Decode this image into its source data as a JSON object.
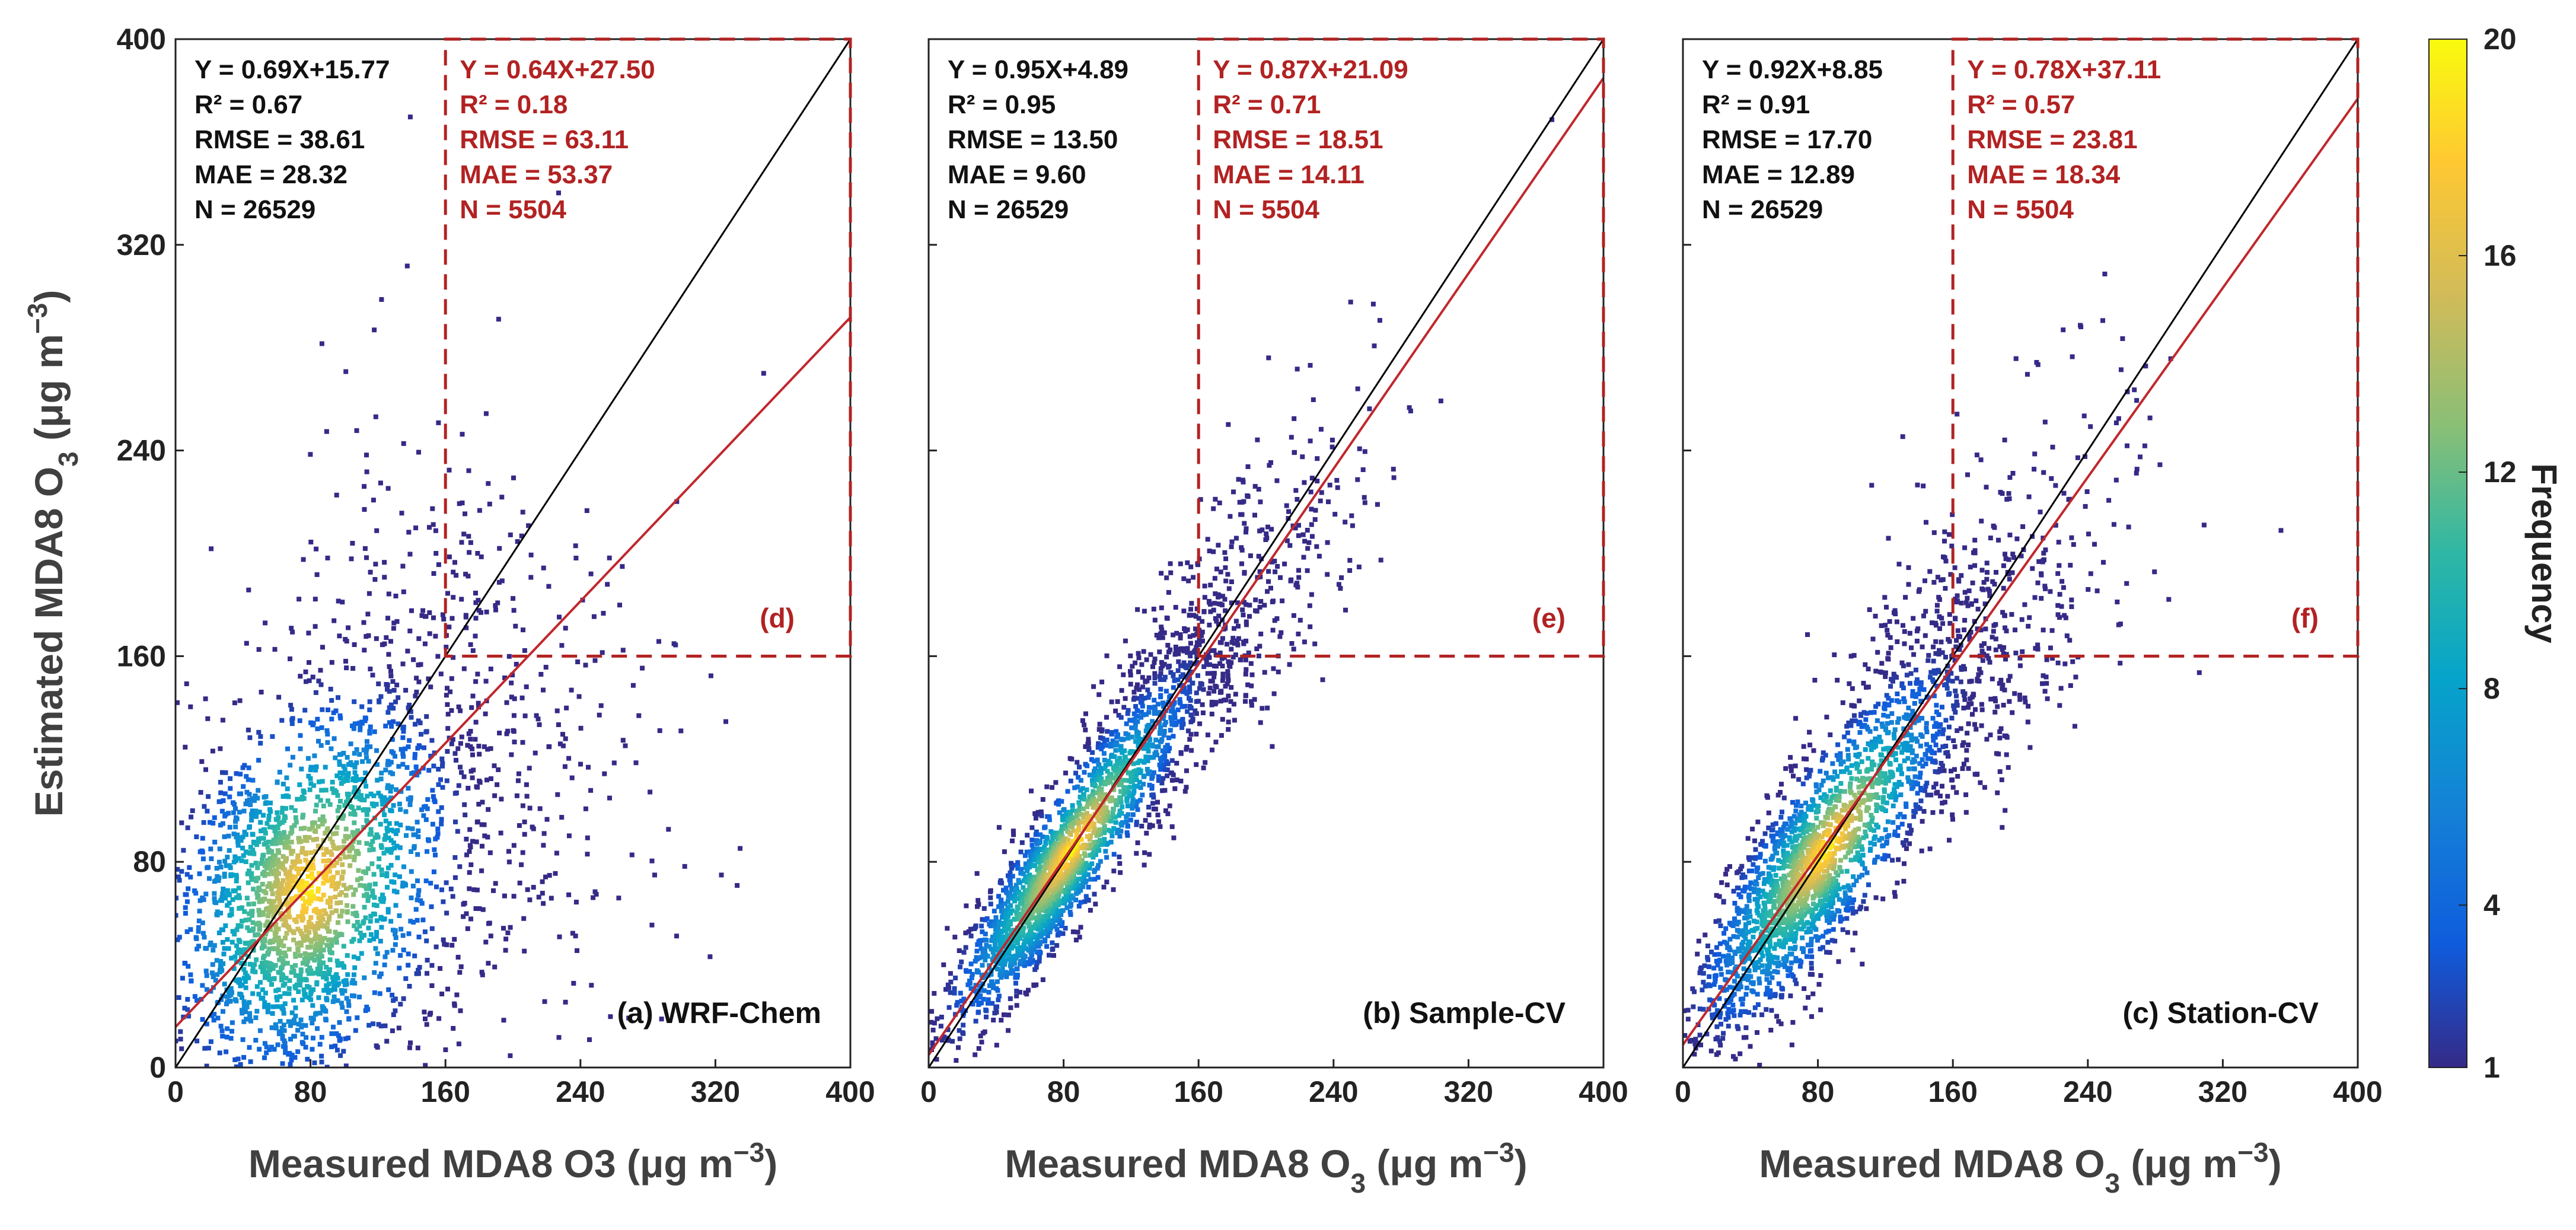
{
  "figure": {
    "ylabel": "Estimated MDA8 O",
    "ylabel_sub": "3",
    "ylabel_unit": " (μg m",
    "ylabel_sup": "−3",
    "ylabel_close": ")",
    "colorbar": {
      "label": "Frequency",
      "ticks": [
        "1",
        "4",
        "8",
        "12",
        "16",
        "20"
      ],
      "tick_values": [
        1,
        4,
        8,
        12,
        16,
        20
      ],
      "range": [
        1,
        20
      ],
      "colors": [
        "#352a87",
        "#0f5cdd",
        "#1481d6",
        "#06a4ca",
        "#2eb7a4",
        "#87bf77",
        "#d1bb59",
        "#fec832",
        "#f9fb0e"
      ]
    }
  },
  "chart_data": [
    {
      "type": "scatter",
      "panel": "(a) WRF-Chem",
      "inset_tag": "(d)",
      "xlabel": {
        "pre": "Measured MDA8 O3",
        "sub": "",
        "unit": " (μg m",
        "sup": "−3",
        "close": ")"
      },
      "xlim": [
        0,
        400
      ],
      "ylim": [
        0,
        400
      ],
      "xticks": [
        "0",
        "80",
        "160",
        "240",
        "320",
        "400"
      ],
      "yticks": [
        "0",
        "80",
        "160",
        "240",
        "320",
        "400"
      ],
      "fit_all": {
        "slope": 0.69,
        "intercept": 15.77
      },
      "fit_high": {
        "slope": 0.64,
        "intercept": 27.5
      },
      "high_region": {
        "x": [
          160,
          400
        ],
        "y": [
          160,
          400
        ]
      },
      "stats_all": [
        "Y = 0.69X+15.77",
        "R² = 0.67",
        "RMSE = 38.61",
        "MAE = 28.32",
        "N = 26529"
      ],
      "stats_high": [
        "Y = 0.64X+27.50",
        "R² = 0.18",
        "RMSE = 63.11",
        "MAE = 53.37",
        "N = 5504"
      ],
      "cloud": {
        "center": [
          80,
          70
        ],
        "spread_major": 70,
        "spread_minor": 32,
        "slope": 0.69,
        "intercept": 15.77
      }
    },
    {
      "type": "scatter",
      "panel": "(b) Sample-CV",
      "inset_tag": "(e)",
      "xlabel": {
        "pre": "Measured MDA8 O",
        "sub": "3",
        "unit": " (μg m",
        "sup": "−3",
        "close": ")"
      },
      "xlim": [
        0,
        400
      ],
      "ylim": [
        0,
        400
      ],
      "xticks": [
        "0",
        "80",
        "160",
        "240",
        "320",
        "400"
      ],
      "yticks": [
        "0",
        "80",
        "160",
        "240",
        "320",
        "400"
      ],
      "fit_all": {
        "slope": 0.95,
        "intercept": 4.89
      },
      "fit_high": {
        "slope": 0.87,
        "intercept": 21.09
      },
      "high_region": {
        "x": [
          160,
          400
        ],
        "y": [
          160,
          400
        ]
      },
      "stats_all": [
        "Y = 0.95X+4.89",
        "R² = 0.95",
        "RMSE = 13.50",
        "MAE = 9.60",
        "N = 26529"
      ],
      "stats_high": [
        "Y = 0.87X+21.09",
        "R² = 0.71",
        "RMSE = 18.51",
        "MAE = 14.11",
        "N = 5504"
      ],
      "cloud": {
        "center": [
          85,
          85
        ],
        "spread_major": 75,
        "spread_minor": 10,
        "slope": 0.95,
        "intercept": 4.89
      }
    },
    {
      "type": "scatter",
      "panel": "(c) Station-CV",
      "inset_tag": "(f)",
      "xlabel": {
        "pre": "Measured MDA8 O",
        "sub": "3",
        "unit": " (μg m",
        "sup": "−3",
        "close": ")"
      },
      "xlim": [
        0,
        400
      ],
      "ylim": [
        0,
        400
      ],
      "xticks": [
        "0",
        "80",
        "160",
        "240",
        "320",
        "400"
      ],
      "yticks": [
        "0",
        "80",
        "160",
        "240",
        "320",
        "400"
      ],
      "fit_all": {
        "slope": 0.92,
        "intercept": 8.85
      },
      "fit_high": {
        "slope": 0.78,
        "intercept": 37.11
      },
      "high_region": {
        "x": [
          160,
          400
        ],
        "y": [
          160,
          400
        ]
      },
      "stats_all": [
        "Y = 0.92X+8.85",
        "R² = 0.91",
        "RMSE = 17.70",
        "MAE = 12.89",
        "N = 26529"
      ],
      "stats_high": [
        "Y = 0.78X+37.11",
        "R² = 0.57",
        "RMSE = 23.81",
        "MAE = 18.34",
        "N = 5504"
      ],
      "cloud": {
        "center": [
          85,
          85
        ],
        "spread_major": 75,
        "spread_minor": 14,
        "slope": 0.92,
        "intercept": 8.85
      }
    }
  ]
}
